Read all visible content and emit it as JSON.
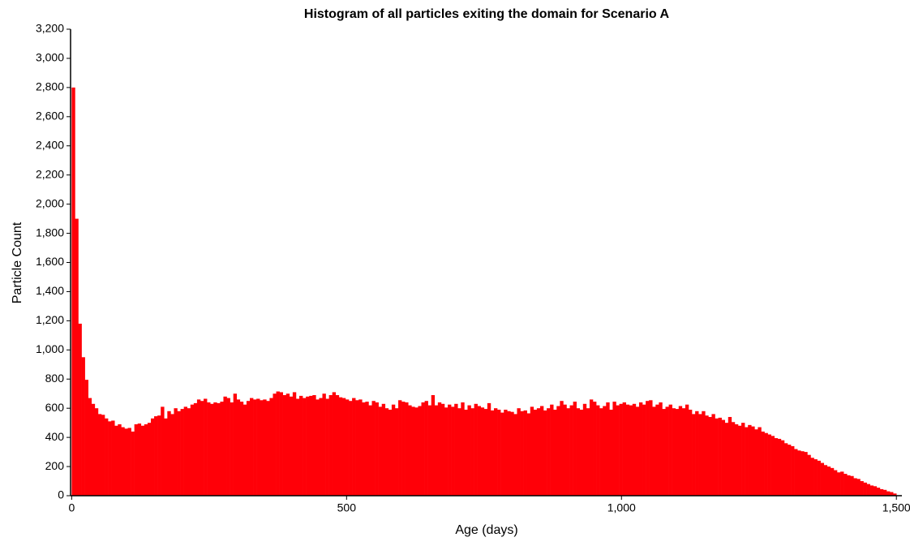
{
  "chart_data": {
    "type": "histogram",
    "title": "Histogram of all particles exiting the domain for Scenario A",
    "x_label": "Age (days)",
    "y_label": "Particle Count",
    "color": "#ff0008",
    "xlim": [
      -2,
      1510
    ],
    "ylim": [
      0,
      3200
    ],
    "xticks": [
      0,
      500,
      {
        "value": 1000,
        "label": "1,000"
      },
      {
        "value": 1500,
        "label": "1,500"
      }
    ],
    "yticks": [
      0,
      200,
      400,
      600,
      800,
      {
        "value": 1000,
        "label": "1,000"
      },
      {
        "value": 1200,
        "label": "1,200"
      },
      {
        "value": 1400,
        "label": "1,400"
      },
      {
        "value": 1600,
        "label": "1,600"
      },
      {
        "value": 1800,
        "label": "1,800"
      },
      {
        "value": 2000,
        "label": "2,000"
      },
      {
        "value": 2200,
        "label": "2,200"
      },
      {
        "value": 2400,
        "label": "2,400"
      },
      {
        "value": 2600,
        "label": "2,600"
      },
      {
        "value": 2800,
        "label": "2,800"
      },
      {
        "value": 3000,
        "label": "3,000"
      },
      {
        "value": 3200,
        "label": "3,200"
      }
    ],
    "bins": [
      0,
      6,
      12,
      18,
      24,
      30,
      36,
      42,
      48,
      54,
      60,
      66,
      72,
      78,
      84,
      90,
      96,
      102,
      108,
      114,
      120,
      126,
      132,
      138,
      144,
      150,
      156,
      162,
      168,
      174,
      180,
      186,
      192,
      198,
      204,
      210,
      216,
      222,
      228,
      234,
      240,
      246,
      252,
      258,
      264,
      270,
      276,
      282,
      288,
      294,
      300,
      306,
      312,
      318,
      324,
      330,
      336,
      342,
      348,
      354,
      360,
      366,
      372,
      378,
      384,
      390,
      396,
      402,
      408,
      414,
      420,
      426,
      432,
      438,
      444,
      450,
      456,
      462,
      468,
      474,
      480,
      486,
      492,
      498,
      504,
      510,
      516,
      522,
      528,
      534,
      540,
      546,
      552,
      558,
      564,
      570,
      576,
      582,
      588,
      594,
      600,
      606,
      612,
      618,
      624,
      630,
      636,
      642,
      648,
      654,
      660,
      666,
      672,
      678,
      684,
      690,
      696,
      702,
      708,
      714,
      720,
      726,
      732,
      738,
      744,
      750,
      756,
      762,
      768,
      774,
      780,
      786,
      792,
      798,
      804,
      810,
      816,
      822,
      828,
      834,
      840,
      846,
      852,
      858,
      864,
      870,
      876,
      882,
      888,
      894,
      900,
      906,
      912,
      918,
      924,
      930,
      936,
      942,
      948,
      954,
      960,
      966,
      972,
      978,
      984,
      990,
      996,
      1002,
      1008,
      1014,
      1020,
      1026,
      1032,
      1038,
      1044,
      1050,
      1056,
      1062,
      1068,
      1074,
      1080,
      1086,
      1092,
      1098,
      1104,
      1110,
      1116,
      1122,
      1128,
      1134,
      1140,
      1146,
      1152,
      1158,
      1164,
      1170,
      1176,
      1182,
      1188,
      1194,
      1200,
      1206,
      1212,
      1218,
      1224,
      1230,
      1236,
      1242,
      1248,
      1254,
      1260,
      1266,
      1272,
      1278,
      1284,
      1290,
      1296,
      1302,
      1308,
      1314,
      1320,
      1326,
      1332,
      1338,
      1344,
      1350,
      1356,
      1362,
      1368,
      1374,
      1380,
      1386,
      1392,
      1398,
      1404,
      1410,
      1416,
      1422,
      1428,
      1434,
      1440,
      1446,
      1452,
      1458,
      1464,
      1470,
      1476,
      1482,
      1488,
      1494,
      1500
    ],
    "values": [
      2800,
      1900,
      1180,
      950,
      795,
      670,
      630,
      600,
      560,
      555,
      530,
      510,
      515,
      480,
      490,
      470,
      460,
      465,
      440,
      490,
      495,
      480,
      490,
      500,
      530,
      545,
      550,
      610,
      530,
      580,
      560,
      600,
      580,
      595,
      610,
      600,
      625,
      635,
      660,
      650,
      665,
      640,
      630,
      640,
      635,
      645,
      680,
      670,
      640,
      700,
      660,
      645,
      625,
      650,
      670,
      660,
      665,
      655,
      660,
      650,
      670,
      700,
      715,
      710,
      690,
      700,
      680,
      710,
      665,
      685,
      670,
      680,
      685,
      690,
      660,
      670,
      700,
      665,
      690,
      710,
      690,
      675,
      670,
      660,
      650,
      670,
      655,
      660,
      640,
      645,
      620,
      650,
      640,
      610,
      630,
      600,
      590,
      625,
      600,
      655,
      645,
      640,
      620,
      610,
      605,
      615,
      640,
      650,
      620,
      690,
      620,
      640,
      630,
      605,
      625,
      610,
      630,
      600,
      640,
      590,
      620,
      600,
      630,
      615,
      605,
      595,
      635,
      585,
      600,
      590,
      570,
      590,
      580,
      575,
      560,
      600,
      580,
      585,
      565,
      610,
      590,
      600,
      615,
      585,
      600,
      625,
      590,
      615,
      650,
      625,
      600,
      620,
      645,
      600,
      590,
      630,
      600,
      660,
      645,
      620,
      600,
      615,
      640,
      590,
      645,
      620,
      630,
      640,
      625,
      620,
      630,
      610,
      640,
      625,
      650,
      655,
      610,
      625,
      640,
      595,
      610,
      625,
      600,
      595,
      615,
      600,
      625,
      590,
      560,
      580,
      560,
      580,
      550,
      540,
      560,
      530,
      535,
      520,
      500,
      540,
      505,
      490,
      480,
      500,
      470,
      485,
      475,
      455,
      470,
      440,
      430,
      420,
      410,
      395,
      390,
      380,
      360,
      350,
      340,
      320,
      310,
      305,
      300,
      280,
      260,
      250,
      240,
      225,
      210,
      200,
      190,
      175,
      160,
      165,
      150,
      140,
      135,
      120,
      115,
      100,
      90,
      80,
      70,
      65,
      55,
      45,
      40,
      30,
      25,
      15
    ]
  }
}
